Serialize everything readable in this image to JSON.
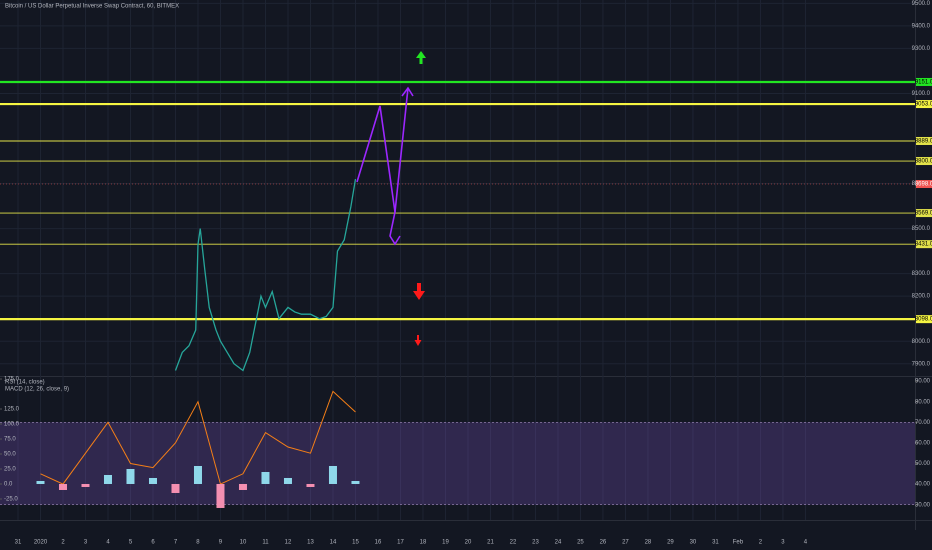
{
  "chart_data": [
    {
      "type": "line",
      "title": "Bitcoin / US Dollar Perpetual Inverse Swap Contract, 60, BITMEX",
      "categories": [
        "31",
        "2020",
        "2",
        "3",
        "4",
        "5",
        "6",
        "7",
        "8",
        "9",
        "10",
        "11",
        "12",
        "13",
        "14",
        "15",
        "16",
        "17",
        "18",
        "19",
        "20",
        "21",
        "22",
        "23",
        "24",
        "25",
        "26",
        "27",
        "28",
        "29",
        "30",
        "31",
        "Feb",
        "2",
        "3",
        "4"
      ],
      "xlim": [
        -0.8,
        39.87
      ],
      "x": [
        7.0,
        7.3,
        7.6,
        7.9,
        8.0,
        8.1,
        8.3,
        8.5,
        8.8,
        9.0,
        9.3,
        9.6,
        10.0,
        10.3,
        10.6,
        10.8,
        11.0,
        11.3,
        11.6,
        12.0,
        12.3,
        12.6,
        13.0,
        13.4,
        13.7,
        14.0,
        14.2,
        14.5,
        14.8,
        15.0
      ],
      "values": [
        7870,
        7950,
        7980,
        8050,
        8430,
        8500,
        8320,
        8150,
        8050,
        8000,
        7950,
        7900,
        7870,
        7950,
        8100,
        8200,
        8150,
        8220,
        8100,
        8150,
        8130,
        8120,
        8120,
        8100,
        8110,
        8150,
        8400,
        8450,
        8600,
        8720
      ],
      "color": "#26a69a",
      "ylim": [
        7850,
        9515
      ],
      "yticks": [
        {
          "value": 7900,
          "label": "7900.0"
        },
        {
          "value": 8000,
          "label": "8000.0"
        },
        {
          "value": 8200,
          "label": "8200.0"
        },
        {
          "value": 8300,
          "label": "8300.0"
        },
        {
          "value": 8500,
          "label": "8500.0"
        },
        {
          "value": 8700,
          "label": "8700.0"
        },
        {
          "value": 9100,
          "label": "9100.0"
        },
        {
          "value": 9300,
          "label": "9300.0"
        },
        {
          "value": 9400,
          "label": "9400.0"
        },
        {
          "value": 9500,
          "label": "9500.0"
        }
      ],
      "grid": true,
      "levels": [
        {
          "value": 9151,
          "label": "9151.0",
          "color": "#22e622"
        },
        {
          "value": 9053,
          "label": "9053.0",
          "color": "#f5f542"
        },
        {
          "value": 8889,
          "label": "8889.0",
          "color": "#e3e34a"
        },
        {
          "value": 8800,
          "label": "8800.0",
          "color": "#e3e34a"
        },
        {
          "value": 8569,
          "label": "8569.0",
          "color": "#e3e34a"
        },
        {
          "value": 8431,
          "label": "8431.0",
          "color": "#e3e34a"
        },
        {
          "value": 8098,
          "label": "8098.0",
          "color": "#f5f542"
        }
      ],
      "last_price": {
        "value": 8698,
        "label": "8698.0",
        "color": "#ef5350"
      }
    },
    {
      "type": "line",
      "x": [
        1,
        2,
        3,
        4,
        5,
        6,
        7,
        8,
        9,
        10,
        11,
        12,
        13,
        14,
        15
      ],
      "ylim": [
        25,
        91.5
      ],
      "yticks": [
        {
          "value": 30,
          "label": "30.00"
        },
        {
          "value": 40,
          "label": "40.00"
        },
        {
          "value": 50,
          "label": "50.00"
        },
        {
          "value": 60,
          "label": "60.00"
        },
        {
          "value": 70,
          "label": "70.00"
        },
        {
          "value": 80,
          "label": "80.00"
        },
        {
          "value": 90,
          "label": "90.00"
        }
      ],
      "y2lim": [
        -51.7,
        176.7
      ],
      "y2ticks": [
        {
          "value": 175,
          "label": "175.0"
        },
        {
          "value": 125,
          "label": "125.0"
        },
        {
          "value": 100,
          "label": "100.0"
        },
        {
          "value": 75,
          "label": "75.0"
        },
        {
          "value": 50,
          "label": "50.0"
        },
        {
          "value": 25,
          "label": "25.0"
        },
        {
          "value": 0,
          "label": "0.0"
        },
        {
          "value": -25,
          "label": "-25.0"
        }
      ],
      "band": [
        30,
        70
      ],
      "series": [
        {
          "name": "RSI (14, close)",
          "color": "#f57f17",
          "values": [
            45,
            40,
            55,
            70,
            50,
            48,
            60,
            80,
            40,
            45,
            65,
            58,
            55,
            85,
            75
          ]
        },
        {
          "name": "MACD (12, 26, close, 9)",
          "color": "#8fd8ea",
          "negative_color": "#f48fb1",
          "axis": "y2",
          "values": [
            5,
            -10,
            -5,
            15,
            25,
            10,
            -15,
            30,
            -40,
            -10,
            20,
            10,
            -5,
            30,
            5
          ]
        }
      ]
    }
  ]
}
